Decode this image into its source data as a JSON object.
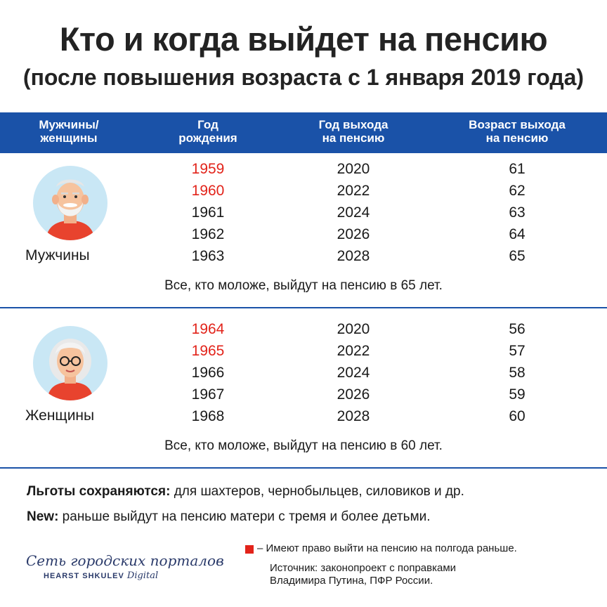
{
  "title": "Кто и когда выйдет на пенсию",
  "subtitle": "(после повышения возраста с 1 января 2019 года)",
  "header": {
    "col1": [
      "Мужчины/",
      "женщины"
    ],
    "col2": [
      "Год",
      "рождения"
    ],
    "col3": [
      "Год выхода",
      "на пенсию"
    ],
    "col4": [
      "Возраст выхода",
      "на пенсию"
    ]
  },
  "men": {
    "label": "Мужчины",
    "rows": [
      {
        "birth": "1959",
        "year": "2020",
        "age": "61",
        "highlight": true
      },
      {
        "birth": "1960",
        "year": "2022",
        "age": "62",
        "highlight": true
      },
      {
        "birth": "1961",
        "year": "2024",
        "age": "63",
        "highlight": false
      },
      {
        "birth": "1962",
        "year": "2026",
        "age": "64",
        "highlight": false
      },
      {
        "birth": "1963",
        "year": "2028",
        "age": "65",
        "highlight": false
      }
    ],
    "note": "Все, кто моложе, выйдут на пенсию в 65 лет."
  },
  "women": {
    "label": "Женщины",
    "rows": [
      {
        "birth": "1964",
        "year": "2020",
        "age": "56",
        "highlight": true
      },
      {
        "birth": "1965",
        "year": "2022",
        "age": "57",
        "highlight": true
      },
      {
        "birth": "1966",
        "year": "2024",
        "age": "58",
        "highlight": false
      },
      {
        "birth": "1967",
        "year": "2026",
        "age": "59",
        "highlight": false
      },
      {
        "birth": "1968",
        "year": "2028",
        "age": "60",
        "highlight": false
      }
    ],
    "note": "Все, кто моложе, выйдут на пенсию в 60 лет."
  },
  "benefits": {
    "bold": "Льготы сохраняются:",
    "text": " для шахтеров, чернобыльцев, силовиков и др."
  },
  "new_info": {
    "bold": "New:",
    "text": " раньше выйдут на пенсию матери с тремя и более детьми."
  },
  "legend": "– Имеют право выйти на пенсию на полгода раньше.",
  "source": [
    "Источник: законопроект с поправками",
    "Владимира Путина, ПФР России."
  ],
  "logo": {
    "line1": "Сеть городских порталов",
    "line2": "HEARST SHKULEV",
    "line2_italic": "Digital"
  },
  "colors": {
    "accent_blue": "#1a52a8",
    "highlight_red": "#e2231a",
    "avatar_bg": "#c9e7f5"
  },
  "icons": [
    "old-man-avatar-icon",
    "old-woman-avatar-icon",
    "red-square-legend-icon"
  ]
}
